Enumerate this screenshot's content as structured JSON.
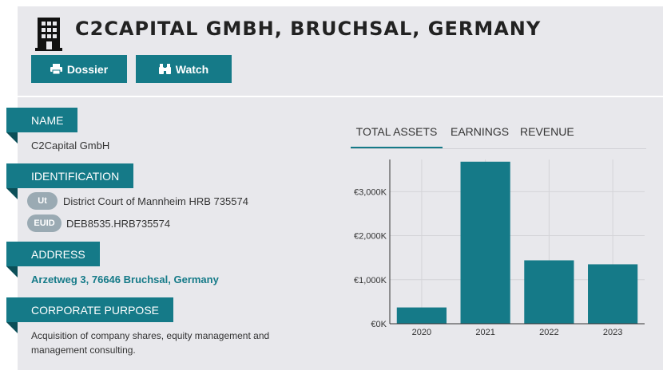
{
  "header": {
    "title": "C2CAPITAL GMBH, BRUCHSAL, GERMANY",
    "icon": "building-icon",
    "buttons": {
      "dossier_label": "Dossier",
      "dossier_icon": "printer-icon",
      "watch_label": "Watch",
      "watch_icon": "binoculars-icon"
    }
  },
  "sections": {
    "name": {
      "label": "NAME",
      "value": "C2Capital GmbH"
    },
    "identification": {
      "label": "IDENTIFICATION",
      "items": [
        {
          "badge": "Ut",
          "value": "District Court of Mannheim HRB 735574"
        },
        {
          "badge": "EUID",
          "value": "DEB8535.HRB735574"
        }
      ]
    },
    "address": {
      "label": "ADDRESS",
      "value": "Arzetweg 3, 76646 Bruchsal, Germany"
    },
    "purpose": {
      "label": "CORPORATE PURPOSE",
      "value": "Acquisition of company shares, equity management and management consulting."
    }
  },
  "tabs": [
    {
      "label": "TOTAL ASSETS",
      "active": true
    },
    {
      "label": "EARNINGS",
      "active": false
    },
    {
      "label": "REVENUE",
      "active": false
    }
  ],
  "colors": {
    "accent": "#157a88",
    "background": "#e8e8ec"
  },
  "chart_data": {
    "type": "bar",
    "categories": [
      "2020",
      "2021",
      "2022",
      "2023"
    ],
    "values": [
      370,
      3680,
      1440,
      1350
    ],
    "ylim": [
      0,
      3600
    ],
    "yticks": [
      0,
      1000,
      2000,
      3000
    ],
    "ytick_labels": [
      "€0K",
      "€1,000K",
      "€2,000K",
      "€3,000K"
    ],
    "grid": true,
    "bar_color": "#157a88"
  }
}
